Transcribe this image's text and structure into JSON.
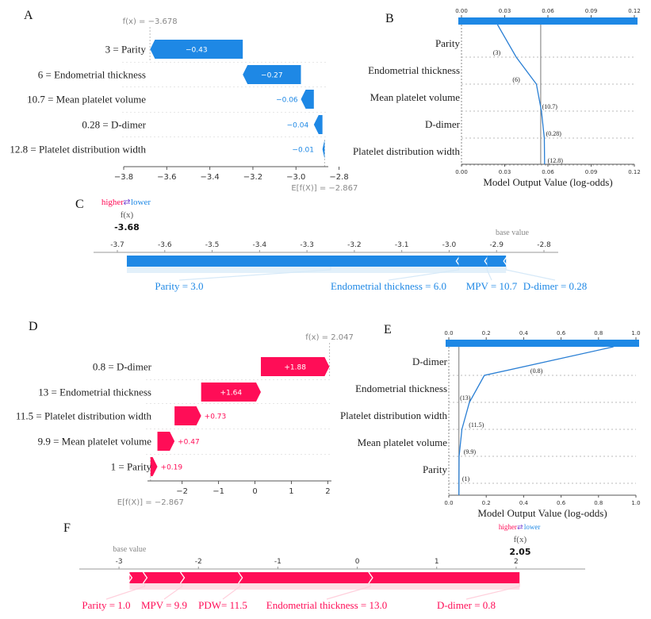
{
  "colors": {
    "blue": "#1E88E5",
    "pink": "#FF0D57",
    "magenta": "#E8175D",
    "text": "#333333",
    "grey": "#888888",
    "grid": "#cccccc",
    "forceBlueLight": "#d6e9f8",
    "forcePinkLight": "#ffd0dc"
  },
  "chart_data": [
    {
      "panel": "A",
      "type": "bar",
      "variant": "waterfall",
      "fx_label": "f(x) = −3.678",
      "ex_label": "E[f(X)] = −2.867",
      "fx": -3.678,
      "base": -2.867,
      "features": [
        "3 = Parity",
        "6 = Endometrial thickness",
        "10.7 = Mean platelet volume",
        "0.28 = D-dimer",
        "12.8 = Platelet distribution width"
      ],
      "values": [
        -0.43,
        -0.27,
        -0.06,
        -0.04,
        -0.01
      ],
      "value_labels": [
        "−0.43",
        "−0.27",
        "−0.06",
        "−0.04",
        "−0.01"
      ],
      "xlim": [
        -3.8,
        -2.85
      ],
      "ticks": [
        -3.8,
        -3.6,
        -3.4,
        -3.2,
        -3.0,
        -2.8
      ],
      "tick_labels": [
        "−3.8",
        "−3.6",
        "−3.4",
        "−3.2",
        "−3.0",
        "−2.8"
      ]
    },
    {
      "panel": "B",
      "type": "line",
      "variant": "decision",
      "features": [
        "Parity",
        "Endometrial thickness",
        "Mean platelet volume",
        "D-dimer",
        "Platelet distribution width"
      ],
      "feature_values": [
        "(3)",
        "(6)",
        "(10.7)",
        "(0.28)",
        "(12.8)"
      ],
      "path_values": [
        0.025,
        0.038,
        0.052,
        0.0555,
        0.0575,
        0.0577
      ],
      "base_value": 0.055,
      "xlim": [
        0,
        0.12
      ],
      "ticks": [
        0.0,
        0.03,
        0.06,
        0.09,
        0.12
      ],
      "tick_labels": [
        "0.00",
        "0.03",
        "0.06",
        "0.09",
        "0.12"
      ],
      "top_tick_labels": [
        "0.00",
        "0.03",
        "0.06",
        "0.09",
        "0.12"
      ],
      "xlabel": "Model Output Value (log-odds)"
    },
    {
      "panel": "C",
      "type": "bar",
      "variant": "force",
      "higher": "higher",
      "lower": "lower",
      "fx_title": "f(x)",
      "fx": -3.68,
      "fx_label": "-3.68",
      "base": -2.867,
      "base_label": "base value",
      "xlim": [
        -3.7,
        -2.8
      ],
      "ticks": [
        -3.7,
        -3.6,
        -3.5,
        -3.4,
        -3.3,
        -3.2,
        -3.1,
        -3.0,
        -2.9,
        -2.8
      ],
      "tick_labels": [
        "-3.7",
        "-3.6",
        "-3.5",
        "-3.4",
        "-3.3",
        "-3.2",
        "-3.1",
        "-3.0",
        "-2.9",
        "-2.8"
      ],
      "segments": [
        {
          "label": "Parity = 3.0",
          "value": -0.43
        },
        {
          "label": "Endometrial thickness = 6.0",
          "value": -0.27
        },
        {
          "label": "MPV = 10.7",
          "value": -0.06
        },
        {
          "label": "D-dimer = 0.28",
          "value": -0.04
        }
      ]
    },
    {
      "panel": "D",
      "type": "bar",
      "variant": "waterfall",
      "fx_label": "f(x) = 2.047",
      "ex_label": "E[f(X)] = −2.867",
      "fx": 2.047,
      "base": -2.867,
      "features": [
        "0.8 = D-dimer",
        "13 = Endometrial thickness",
        "11.5 = Platelet distribution width",
        "9.9 = Mean platelet volume",
        "1 = Parity"
      ],
      "values": [
        1.88,
        1.64,
        0.73,
        0.47,
        0.19
      ],
      "value_labels": [
        "+1.88",
        "+1.64",
        "+0.73",
        "+0.47",
        "+0.19"
      ],
      "xlim": [
        -2.95,
        2.1
      ],
      "ticks": [
        -2,
        -1,
        0,
        1,
        2
      ],
      "tick_labels": [
        "−2",
        "−1",
        "0",
        "1",
        "2"
      ]
    },
    {
      "panel": "E",
      "type": "line",
      "variant": "decision",
      "features": [
        "D-dimer",
        "Endometrial thickness",
        "Platelet distribution width",
        "Mean platelet volume",
        "Parity"
      ],
      "feature_values": [
        "(0.8)",
        "(13)",
        "(11.5)",
        "(9.9)",
        "(1)"
      ],
      "path_values": [
        0.88,
        0.19,
        0.11,
        0.07,
        0.055,
        0.054
      ],
      "base_value": 0.054,
      "xlim": [
        0,
        1
      ],
      "ticks": [
        0.0,
        0.2,
        0.4,
        0.6,
        0.8,
        1.0
      ],
      "tick_labels": [
        "0.0",
        "0.2",
        "0.4",
        "0.6",
        "0.8",
        "1.0"
      ],
      "top_tick_labels": [
        "0.0",
        "0.2",
        "0.4",
        "0.6",
        "0.8",
        "1.0"
      ],
      "xlabel": "Model Output Value (log-odds)"
    },
    {
      "panel": "F",
      "type": "bar",
      "variant": "force",
      "higher": "higher",
      "lower": "lower",
      "fx_title": "f(x)",
      "fx": 2.05,
      "fx_label": "2.05",
      "base": -2.867,
      "base_label": "base value",
      "xlim": [
        -3.5,
        2.65
      ],
      "ticks": [
        -3,
        -2,
        -1,
        0,
        1,
        2
      ],
      "tick_labels": [
        "-3",
        "-2",
        "-1",
        "0",
        "1",
        "2"
      ],
      "segments": [
        {
          "label": "Parity = 1.0",
          "value": 0.19
        },
        {
          "label": "MPV = 9.9",
          "value": 0.47
        },
        {
          "label": "PDW= 11.5",
          "value": 0.73
        },
        {
          "label": "Endometrial thickness = 13.0",
          "value": 1.64
        },
        {
          "label": "D-dimer = 0.8",
          "value": 1.88
        }
      ]
    }
  ],
  "panels": {
    "A": "A",
    "B": "B",
    "C": "C",
    "D": "D",
    "E": "E",
    "F": "F"
  }
}
